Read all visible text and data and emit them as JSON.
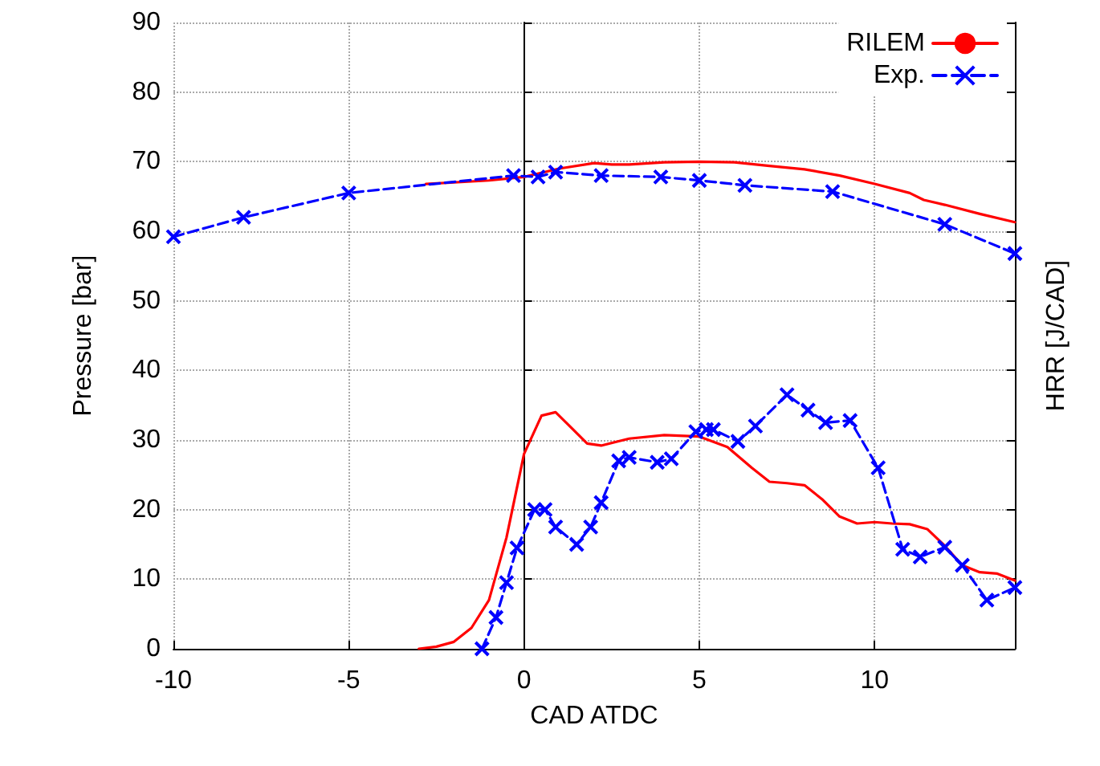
{
  "chart_data": {
    "type": "line",
    "xlabel": "CAD ATDC",
    "ylabel": "Pressure [bar]",
    "y2label": "HRR [J/CAD]",
    "xlim": [
      -10,
      14
    ],
    "ylim": [
      0,
      90
    ],
    "xticks": [
      -10,
      -5,
      0,
      5,
      10
    ],
    "yticks": [
      0,
      10,
      20,
      30,
      40,
      50,
      60,
      70,
      80,
      90
    ],
    "grid": true,
    "legend": "top right",
    "series": [
      {
        "name": "RILEM",
        "color": "#ff0000",
        "marker": "none",
        "line_style": "solid",
        "x": [
          -2.8,
          -1,
          0,
          1,
          2,
          2.5,
          3,
          4,
          5,
          6,
          7,
          8,
          9,
          10,
          11,
          11.4,
          12,
          13,
          14
        ],
        "values": [
          66.8,
          67.3,
          67.8,
          69,
          69.8,
          69.6,
          69.6,
          69.9,
          70,
          69.9,
          69.4,
          68.9,
          68,
          66.8,
          65.5,
          64.5,
          63.8,
          62.5,
          61.3
        ]
      },
      {
        "name": "Exp.",
        "color": "#0000ff",
        "marker": "cross",
        "line_style": "dashed",
        "x": [
          -10,
          -8,
          -5,
          -0.3,
          0.4,
          0.9,
          2.2,
          3.9,
          5,
          6.3,
          8.8,
          12,
          14
        ],
        "values": [
          59.2,
          62,
          65.5,
          68,
          67.8,
          68.5,
          68,
          67.8,
          67.3,
          66.6,
          65.7,
          61,
          56.8
        ]
      },
      {
        "color": "#ff0000",
        "marker": "none",
        "line_style": "solid",
        "x": [
          -3,
          -2.5,
          -2,
          -1.5,
          -1,
          -0.5,
          0,
          0.5,
          0.9,
          1.3,
          1.8,
          2.2,
          3,
          4,
          5,
          5.8,
          6.5,
          7,
          7.5,
          8,
          8.5,
          9,
          9.5,
          10,
          10.5,
          11,
          11.5,
          12,
          12.5,
          13,
          13.5,
          14
        ],
        "values": [
          0,
          0.3,
          1,
          3,
          7,
          16,
          28,
          33.5,
          34,
          32,
          29.5,
          29.2,
          30.2,
          30.7,
          30.5,
          29,
          26,
          24,
          23.8,
          23.5,
          21.5,
          19,
          18,
          18.2,
          18,
          17.9,
          17.2,
          14.8,
          12,
          11,
          10.8,
          9.8
        ]
      },
      {
        "color": "#0000ff",
        "marker": "cross",
        "line_style": "dashed",
        "x": [
          -1.2,
          -0.8,
          -0.5,
          -0.2,
          0.3,
          0.6,
          0.9,
          1.5,
          1.9,
          2.2,
          2.7,
          3,
          3.8,
          4.2,
          4.9,
          5.2,
          5.4,
          6.1,
          6.6,
          7.5,
          8.1,
          8.6,
          9.3,
          10.1,
          10.8,
          11.3,
          12,
          12.5,
          13.2,
          14
        ],
        "values": [
          0,
          4.5,
          9.5,
          14.5,
          20,
          20,
          17.5,
          15,
          17.5,
          21,
          27,
          27.5,
          26.8,
          27.3,
          31.2,
          31.5,
          31.5,
          29.8,
          32,
          36.5,
          34.3,
          32.5,
          32.8,
          26,
          14.3,
          13.2,
          14.6,
          12,
          7,
          8.8
        ]
      }
    ]
  }
}
